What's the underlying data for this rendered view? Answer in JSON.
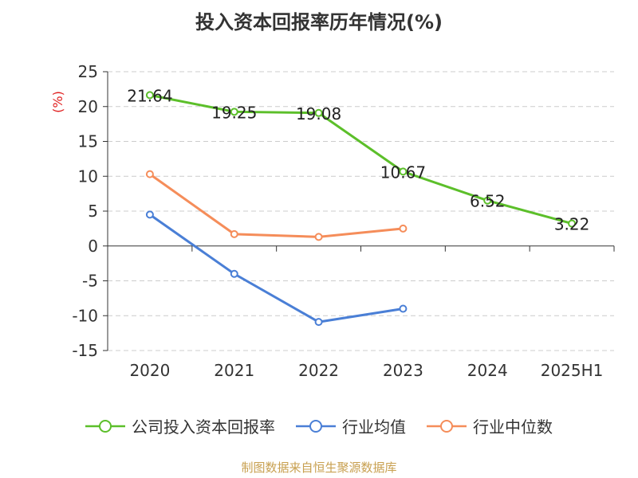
{
  "title": "投入资本回报率历年情况(%)",
  "source": "制图数据来自恒生聚源数据库",
  "chart_data": {
    "type": "line",
    "ylabel": "(%)",
    "ylim": [
      -15,
      25
    ],
    "yticks": [
      25,
      20,
      15,
      10,
      5,
      0,
      -5,
      -10,
      -15
    ],
    "grid": true,
    "legend_position": "bottom",
    "categories": [
      "2020",
      "2021",
      "2022",
      "2023",
      "2024",
      "2025H1"
    ],
    "series": [
      {
        "name": "公司投入资本回报率",
        "color": "#5cbf2a",
        "values": [
          21.64,
          19.25,
          19.08,
          10.67,
          6.52,
          3.22
        ],
        "labels": [
          "21.64",
          "19.25",
          "19.08",
          "10.67",
          "6.52",
          "3.22"
        ]
      },
      {
        "name": "行业均值",
        "color": "#4a7fd6",
        "values": [
          4.5,
          -4.0,
          -10.9,
          -9.0,
          null,
          null
        ]
      },
      {
        "name": "行业中位数",
        "color": "#f58d5a",
        "values": [
          10.3,
          1.7,
          1.3,
          2.5,
          null,
          null
        ]
      }
    ]
  }
}
